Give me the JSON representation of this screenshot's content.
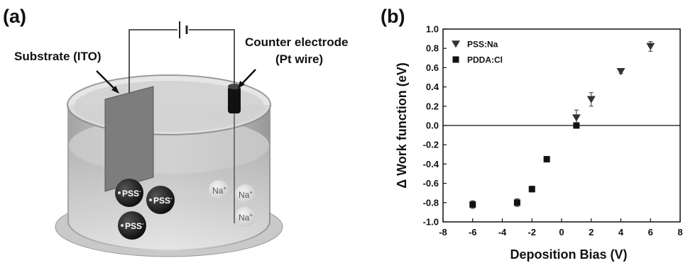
{
  "panel_a": {
    "label": "(a)",
    "substrate_label": "Substrate (ITO)",
    "counter_label_line1": "Counter electrode",
    "counter_label_line2": "(Pt wire)",
    "ions": {
      "pss": "PSS",
      "pss_charge": "-",
      "na": "Na",
      "na_charge": "+"
    }
  },
  "panel_b": {
    "label": "(b)"
  },
  "chart_data": {
    "type": "scatter",
    "title": "",
    "xlabel": "Deposition Bias (V)",
    "ylabel": "Δ Work function (eV)",
    "xlim": [
      -8,
      8
    ],
    "ylim": [
      -1.0,
      1.0
    ],
    "xticks": [
      "-8",
      "-6",
      "-4",
      "-2",
      "0",
      "2",
      "4",
      "6",
      "8"
    ],
    "yticks": [
      "-1.0",
      "-0.8",
      "-0.6",
      "-0.4",
      "-0.2",
      "0.0",
      "0.2",
      "0.4",
      "0.6",
      "0.8",
      "1.0"
    ],
    "legend_position": "top-left",
    "series": [
      {
        "name": "PSS:Na",
        "marker": "triangle-down",
        "color": "#333333",
        "x": [
          1,
          2,
          4,
          6
        ],
        "y": [
          0.08,
          0.27,
          0.56,
          0.82
        ],
        "err": [
          0.08,
          0.07,
          0.02,
          0.05
        ]
      },
      {
        "name": "PDDA:Cl",
        "marker": "square",
        "color": "#111111",
        "x": [
          -6,
          -3,
          -2,
          -1,
          1
        ],
        "y": [
          -0.82,
          -0.8,
          -0.66,
          -0.35,
          0.0
        ],
        "err": [
          0.04,
          0.04,
          0.03,
          0.0,
          0.0
        ]
      }
    ]
  }
}
